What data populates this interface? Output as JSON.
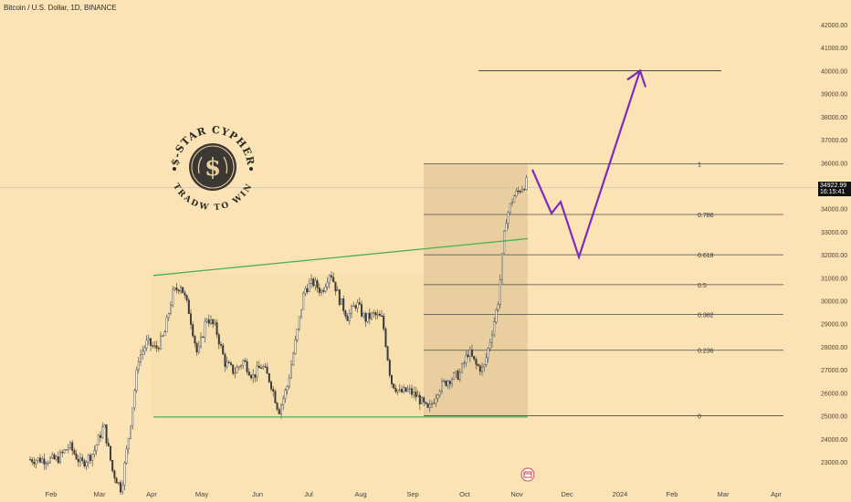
{
  "title": "Bitcoin / U.S. Dollar, 1D, BINANCE",
  "last_price": "34922.99",
  "countdown": "16:15:41",
  "logo": {
    "top_text": "$-STAR CYPHER",
    "bottom_text": "TRADW TO WIN",
    "symbol": "$"
  },
  "icons": [
    "dollar-seal-logo-icon",
    "calendar-icon"
  ],
  "colors": {
    "background": "#FCE3B6",
    "candle": "#3a3a3a",
    "channel_line": "#4CAF50",
    "projection": "#7B2CB8",
    "fib_zone": "#E9CF9F",
    "range_zone": "#F7E0AE"
  },
  "chart_data": {
    "type": "candlestick",
    "x_ticks": [
      "Feb",
      "Mar",
      "Apr",
      "May",
      "Jun",
      "Jul",
      "Aug",
      "Sep",
      "Oct",
      "Nov",
      "Dec",
      "2024",
      "Feb",
      "Mar",
      "Apr"
    ],
    "y_ticks": [
      23000,
      24000,
      25000,
      26000,
      27000,
      28000,
      29000,
      30000,
      31000,
      32000,
      33000,
      34000,
      35000,
      36000,
      37000,
      38000,
      39000,
      40000,
      41000,
      42000
    ],
    "ylim": [
      22500,
      42200
    ],
    "price_path": [
      [
        "Feb",
        23100
      ],
      [
        "Feb",
        23700
      ],
      [
        "Feb",
        22900
      ],
      [
        "Feb",
        23400
      ],
      [
        "Mar",
        24600
      ],
      [
        "Mar",
        22600
      ],
      [
        "Mar",
        21800
      ],
      [
        "Mar",
        24500
      ],
      [
        "Mar",
        27500
      ],
      [
        "Mar",
        28200
      ],
      [
        "Apr",
        27900
      ],
      [
        "Apr",
        28500
      ],
      [
        "Apr",
        30300
      ],
      [
        "Apr",
        30700
      ],
      [
        "Apr",
        29500
      ],
      [
        "Apr",
        27600
      ],
      [
        "May",
        29300
      ],
      [
        "May",
        28800
      ],
      [
        "May",
        27300
      ],
      [
        "May",
        26900
      ],
      [
        "May",
        27400
      ],
      [
        "May",
        26700
      ],
      [
        "Jun",
        27200
      ],
      [
        "Jun",
        26500
      ],
      [
        "Jun",
        25200
      ],
      [
        "Jun",
        26300
      ],
      [
        "Jun",
        28300
      ],
      [
        "Jun",
        30500
      ],
      [
        "Jul",
        30800
      ],
      [
        "Jul",
        30400
      ],
      [
        "Jul",
        31300
      ],
      [
        "Jul",
        30100
      ],
      [
        "Jul",
        29300
      ],
      [
        "Jul",
        29900
      ],
      [
        "Aug",
        29200
      ],
      [
        "Aug",
        29400
      ],
      [
        "Aug",
        29200
      ],
      [
        "Aug",
        26500
      ],
      [
        "Aug",
        26000
      ],
      [
        "Aug",
        26100
      ],
      [
        "Sep",
        25800
      ],
      [
        "Sep",
        25200
      ],
      [
        "Sep",
        26200
      ],
      [
        "Sep",
        26600
      ],
      [
        "Sep",
        26800
      ],
      [
        "Oct",
        27800
      ],
      [
        "Oct",
        27200
      ],
      [
        "Oct",
        27000
      ],
      [
        "Oct",
        28400
      ],
      [
        "Oct",
        30000
      ],
      [
        "Oct",
        33500
      ],
      [
        "Oct",
        34500
      ],
      [
        "Nov",
        35300
      ],
      [
        "Nov",
        34900
      ]
    ],
    "channel": {
      "support": [
        [
          "Apr",
          24950
        ],
        [
          "Nov",
          24950
        ]
      ],
      "resistance": [
        [
          "Apr",
          31100
        ],
        [
          "Nov",
          32700
        ]
      ]
    },
    "target_line": 40000,
    "fibonacci": [
      {
        "label": "1",
        "price": 35950
      },
      {
        "label": "0.786",
        "price": 33750
      },
      {
        "label": "0.618",
        "price": 32000
      },
      {
        "label": "0.5",
        "price": 30700
      },
      {
        "label": "0.382",
        "price": 29400
      },
      {
        "label": "0.236",
        "price": 27850
      },
      {
        "label": "0",
        "price": 25000
      }
    ],
    "projection": [
      [
        "Nov",
        35700
      ],
      [
        "Nov",
        33800
      ],
      [
        "Nov",
        34300
      ],
      [
        "Dec",
        31900
      ],
      [
        "2024",
        36000
      ],
      [
        "Feb",
        40000
      ]
    ],
    "current_price": 34922.99
  }
}
